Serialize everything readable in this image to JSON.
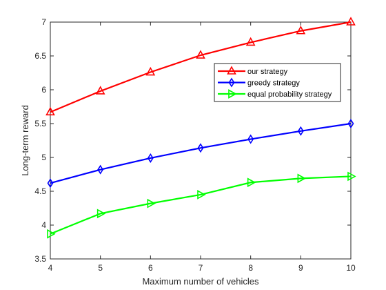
{
  "chart_data": {
    "type": "line",
    "title": "",
    "xlabel": "Maximum number of vehicles",
    "ylabel": "Long-term reward",
    "x": [
      4,
      5,
      6,
      7,
      8,
      9,
      10
    ],
    "xlim": [
      4,
      10
    ],
    "ylim": [
      3.5,
      7
    ],
    "xticks": [
      "4",
      "5",
      "6",
      "7",
      "8",
      "9",
      "10"
    ],
    "yticks": [
      "3.5",
      "4",
      "4.5",
      "5",
      "5.5",
      "6",
      "6.5",
      "7"
    ],
    "grid": false,
    "legend_position": "top-right",
    "series": [
      {
        "name": "our strategy",
        "color": "#ff0000",
        "marker": "triangle-up",
        "values": [
          5.67,
          5.98,
          6.26,
          6.51,
          6.7,
          6.87,
          7.0
        ]
      },
      {
        "name": "greedy strategy",
        "color": "#0000ff",
        "marker": "diamond",
        "values": [
          4.62,
          4.82,
          4.99,
          5.14,
          5.27,
          5.39,
          5.5
        ]
      },
      {
        "name": "equal probability strategy",
        "color": "#00ff00",
        "marker": "triangle-right",
        "values": [
          3.87,
          4.17,
          4.32,
          4.45,
          4.63,
          4.69,
          4.72
        ]
      }
    ]
  }
}
